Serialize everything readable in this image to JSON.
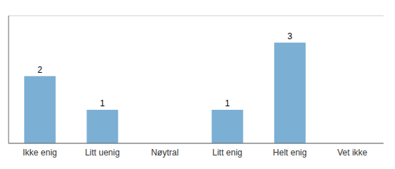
{
  "chart_data": {
    "type": "bar",
    "categories": [
      "Ikke enig",
      "Litt uenig",
      "Nøytral",
      "Litt enig",
      "Helt enig",
      "Vet ikke"
    ],
    "values": [
      2,
      1,
      0,
      1,
      3,
      0
    ],
    "color": "#7BAFD4",
    "ylim": [
      0,
      3.8
    ],
    "yticks": [
      0,
      1,
      2,
      3
    ],
    "grid": true,
    "data_labels": true,
    "tick_labels": "x"
  }
}
